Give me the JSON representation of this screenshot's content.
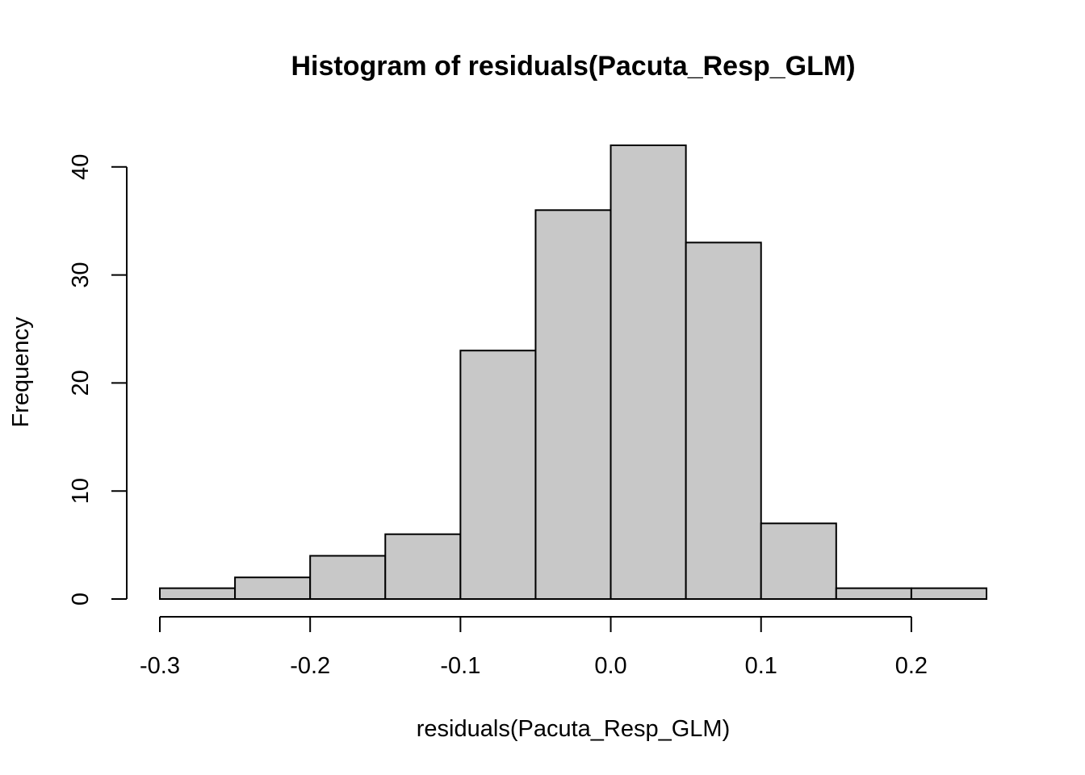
{
  "chart_data": {
    "type": "bar",
    "title": "Histogram of residuals(Pacuta_Resp_GLM)",
    "xlabel": "residuals(Pacuta_Resp_GLM)",
    "ylabel": "Frequency",
    "bins": [
      {
        "x0": -0.3,
        "x1": -0.25,
        "count": 1
      },
      {
        "x0": -0.25,
        "x1": -0.2,
        "count": 2
      },
      {
        "x0": -0.2,
        "x1": -0.15,
        "count": 4
      },
      {
        "x0": -0.15,
        "x1": -0.1,
        "count": 6
      },
      {
        "x0": -0.1,
        "x1": -0.05,
        "count": 23
      },
      {
        "x0": -0.05,
        "x1": 0.0,
        "count": 36
      },
      {
        "x0": 0.0,
        "x1": 0.05,
        "count": 42
      },
      {
        "x0": 0.05,
        "x1": 0.1,
        "count": 33
      },
      {
        "x0": 0.1,
        "x1": 0.15,
        "count": 7
      },
      {
        "x0": 0.15,
        "x1": 0.2,
        "count": 1
      },
      {
        "x0": 0.2,
        "x1": 0.25,
        "count": 1
      }
    ],
    "xlim": [
      -0.3,
      0.25
    ],
    "ylim": [
      0,
      42
    ],
    "x_ticks": [
      -0.3,
      -0.2,
      -0.1,
      0.0,
      0.1,
      0.2
    ],
    "x_tick_labels": [
      "-0.3",
      "-0.2",
      "-0.1",
      "0.0",
      "0.1",
      "0.2"
    ],
    "y_ticks": [
      0,
      10,
      20,
      30,
      40
    ],
    "y_tick_labels": [
      "0",
      "10",
      "20",
      "30",
      "40"
    ],
    "bar_color": "#c8c8c8",
    "grid": false,
    "legend": "none"
  }
}
